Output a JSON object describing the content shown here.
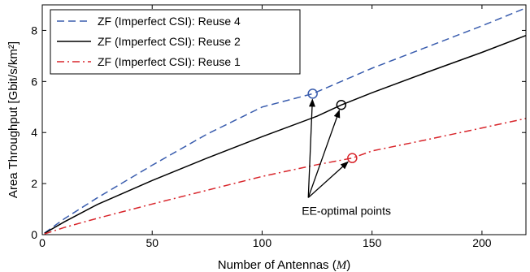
{
  "chart_data": {
    "type": "line",
    "xlabel": "Number of Antennas (M)",
    "xlabel_parts": {
      "prefix": "Number of Antennas (",
      "var": "M",
      "suffix": ")"
    },
    "ylabel": "Area Throughput [Gbit/s/km²]",
    "xlim": [
      0,
      220
    ],
    "ylim": [
      0,
      9
    ],
    "xticks": [
      0,
      50,
      100,
      150,
      200
    ],
    "yticks": [
      0,
      2,
      4,
      6,
      8
    ],
    "grid": false,
    "legend_position": "top-left",
    "series": [
      {
        "name": "ZF (Imperfect CSI): Reuse 4",
        "color": "#3a5dae",
        "style": "dashed",
        "x": [
          1,
          10,
          25,
          50,
          75,
          100,
          123,
          150,
          175,
          200,
          220
        ],
        "y": [
          0.06,
          0.62,
          1.44,
          2.72,
          3.94,
          5.0,
          5.52,
          6.52,
          7.35,
          8.18,
          8.88
        ]
      },
      {
        "name": "ZF (Imperfect CSI): Reuse 2",
        "color": "#000000",
        "style": "solid",
        "x": [
          1,
          10,
          25,
          50,
          75,
          100,
          125,
          136,
          150,
          175,
          200,
          220
        ],
        "y": [
          0.05,
          0.5,
          1.18,
          2.12,
          3.0,
          3.84,
          4.64,
          5.08,
          5.56,
          6.36,
          7.14,
          7.8
        ]
      },
      {
        "name": "ZF (Imperfect CSI): Reuse 1",
        "color": "#d8252b",
        "style": "dashdot",
        "x": [
          1,
          10,
          25,
          50,
          75,
          100,
          125,
          141,
          150,
          175,
          200,
          220
        ],
        "y": [
          0.03,
          0.28,
          0.64,
          1.2,
          1.74,
          2.28,
          2.74,
          3.0,
          3.28,
          3.72,
          4.18,
          4.55
        ]
      }
    ],
    "optimal_points": [
      {
        "series": 0,
        "x": 123,
        "y": 5.52
      },
      {
        "series": 1,
        "x": 136,
        "y": 5.08
      },
      {
        "series": 2,
        "x": 141,
        "y": 3.0
      }
    ],
    "annotation": {
      "text": "EE-optimal points",
      "x": 121,
      "y": 1.45
    }
  }
}
